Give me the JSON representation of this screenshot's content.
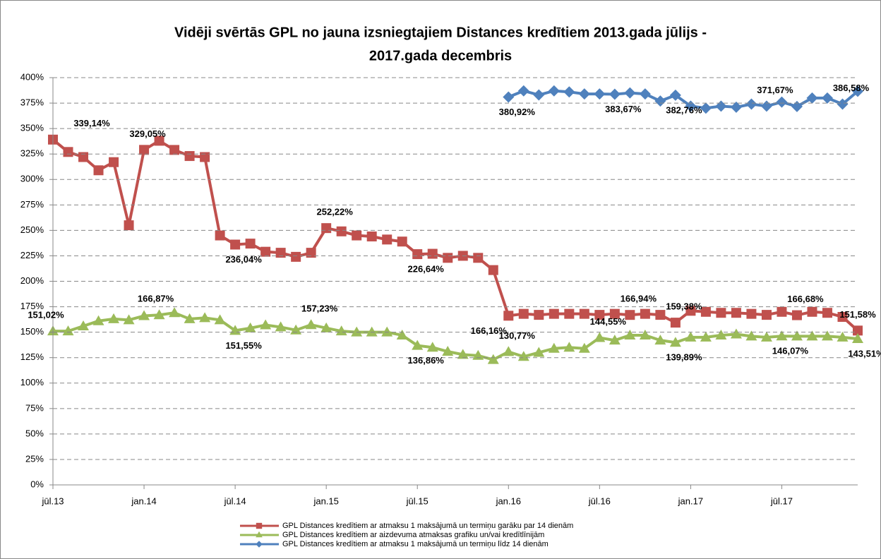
{
  "chart_data": {
    "type": "line",
    "title": "Vidēji svērtās GPL no jauna izsniegtajiem Distances kredītiem 2013.gada jūlijs -",
    "title_line2": "2017.gada decembris",
    "categories": [
      "jūl.13",
      null,
      null,
      null,
      null,
      null,
      "jan.14",
      null,
      null,
      null,
      null,
      null,
      "jūl.14",
      null,
      null,
      null,
      null,
      null,
      "jan.15",
      null,
      null,
      null,
      null,
      null,
      "jūl.15",
      null,
      null,
      null,
      null,
      null,
      "jan.16",
      null,
      null,
      null,
      null,
      null,
      "jūl.16",
      null,
      null,
      null,
      null,
      null,
      "jan.17",
      null,
      null,
      null,
      null,
      null,
      "jūl.17",
      null,
      null,
      null,
      null,
      null
    ],
    "ylim": [
      0,
      400
    ],
    "yticks": [
      {
        "value": 0,
        "label": "0%"
      },
      {
        "value": 25,
        "label": "25%"
      },
      {
        "value": 50,
        "label": "50%"
      },
      {
        "value": 75,
        "label": "75%"
      },
      {
        "value": 100,
        "label": "100%"
      },
      {
        "value": 125,
        "label": "125%"
      },
      {
        "value": 150,
        "label": "150%"
      },
      {
        "value": 175,
        "label": "175%"
      },
      {
        "value": 200,
        "label": "200%"
      },
      {
        "value": 225,
        "label": "225%"
      },
      {
        "value": 250,
        "label": "250%"
      },
      {
        "value": 275,
        "label": "275%"
      },
      {
        "value": 300,
        "label": "300%"
      },
      {
        "value": 325,
        "label": "325%"
      },
      {
        "value": 350,
        "label": "350%"
      },
      {
        "value": 375,
        "label": "375%"
      },
      {
        "value": 400,
        "label": "400%"
      }
    ],
    "grid": true,
    "series": [
      {
        "name": "GPL Distances kredītiem ar atmaksu 1 maksājumā un termiņu garāku par 14 dienām",
        "color": "#c0504d",
        "marker": "square",
        "values": [
          339.14,
          327,
          322,
          309,
          317,
          255,
          329.05,
          338,
          329,
          323,
          322,
          245,
          236.04,
          237,
          229,
          228,
          224,
          228,
          252.22,
          249,
          245,
          244,
          241,
          239,
          226.64,
          227,
          223,
          225,
          223,
          211,
          166.16,
          168,
          167,
          168,
          168,
          168,
          167,
          168,
          166.94,
          168,
          167,
          159.38,
          171,
          170,
          169,
          169,
          168,
          167,
          170,
          166.68,
          170,
          169,
          165,
          151.58
        ],
        "value_labels": [
          "339,14%",
          null,
          null,
          null,
          null,
          null,
          "329,05%",
          null,
          null,
          null,
          null,
          null,
          "236,04%",
          null,
          null,
          null,
          null,
          null,
          "252,22%",
          null,
          null,
          null,
          null,
          null,
          "226,64%",
          null,
          null,
          null,
          null,
          null,
          "166,16%",
          null,
          null,
          null,
          null,
          null,
          null,
          null,
          "166,94%",
          null,
          null,
          "159,38%",
          null,
          null,
          null,
          null,
          null,
          null,
          null,
          "166,68%",
          null,
          null,
          null,
          "151,58%"
        ]
      },
      {
        "name": "GPL Distances kredītiem ar aizdevuma atmaksas grafiku un/vai kredītlīnijām",
        "color": "#9bbb59",
        "marker": "triangle",
        "values": [
          151.02,
          151,
          156,
          161,
          163,
          162,
          166,
          166.87,
          169,
          163,
          164,
          162,
          151.55,
          154,
          157,
          155,
          152,
          157.23,
          154,
          151,
          150,
          150,
          150,
          147,
          136.86,
          135,
          131,
          128,
          127,
          123,
          130.77,
          126,
          130,
          134,
          135,
          134,
          144.55,
          142,
          147,
          147,
          142,
          139.89,
          145,
          145,
          147,
          148,
          146,
          145,
          146.07,
          146,
          146,
          146,
          145,
          143.51
        ],
        "value_labels": [
          "151,02%",
          null,
          null,
          null,
          null,
          null,
          null,
          "166,87%",
          null,
          null,
          null,
          null,
          "151,55%",
          null,
          null,
          null,
          null,
          "157,23%",
          null,
          null,
          null,
          null,
          null,
          null,
          "136,86%",
          null,
          null,
          null,
          null,
          null,
          "130,77%",
          null,
          null,
          null,
          null,
          null,
          "144,55%",
          null,
          null,
          null,
          null,
          "139,89%",
          null,
          null,
          null,
          null,
          null,
          null,
          "146,07%",
          null,
          null,
          null,
          null,
          "143,51%"
        ]
      },
      {
        "name": "GPL Distances kredītiem ar atmaksu 1 maksājumā un termiņu līdz 14 dienām",
        "color": "#4f81bd",
        "marker": "diamond",
        "values": [
          null,
          null,
          null,
          null,
          null,
          null,
          null,
          null,
          null,
          null,
          null,
          null,
          null,
          null,
          null,
          null,
          null,
          null,
          null,
          null,
          null,
          null,
          null,
          null,
          null,
          null,
          null,
          null,
          null,
          null,
          380.92,
          387,
          383,
          387,
          386,
          384,
          384,
          383.67,
          385,
          384,
          377,
          382.76,
          372,
          370,
          372,
          371,
          374,
          372,
          376,
          371.67,
          380,
          380,
          374,
          386.58
        ],
        "value_labels": [
          null,
          null,
          null,
          null,
          null,
          null,
          null,
          null,
          null,
          null,
          null,
          null,
          null,
          null,
          null,
          null,
          null,
          null,
          null,
          null,
          null,
          null,
          null,
          null,
          null,
          null,
          null,
          null,
          null,
          null,
          "380,92%",
          null,
          null,
          null,
          null,
          null,
          null,
          "383,67%",
          null,
          null,
          null,
          "382,76%",
          null,
          null,
          null,
          null,
          null,
          "371,67%",
          null,
          null,
          null,
          null,
          "386,58%"
        ]
      }
    ]
  }
}
